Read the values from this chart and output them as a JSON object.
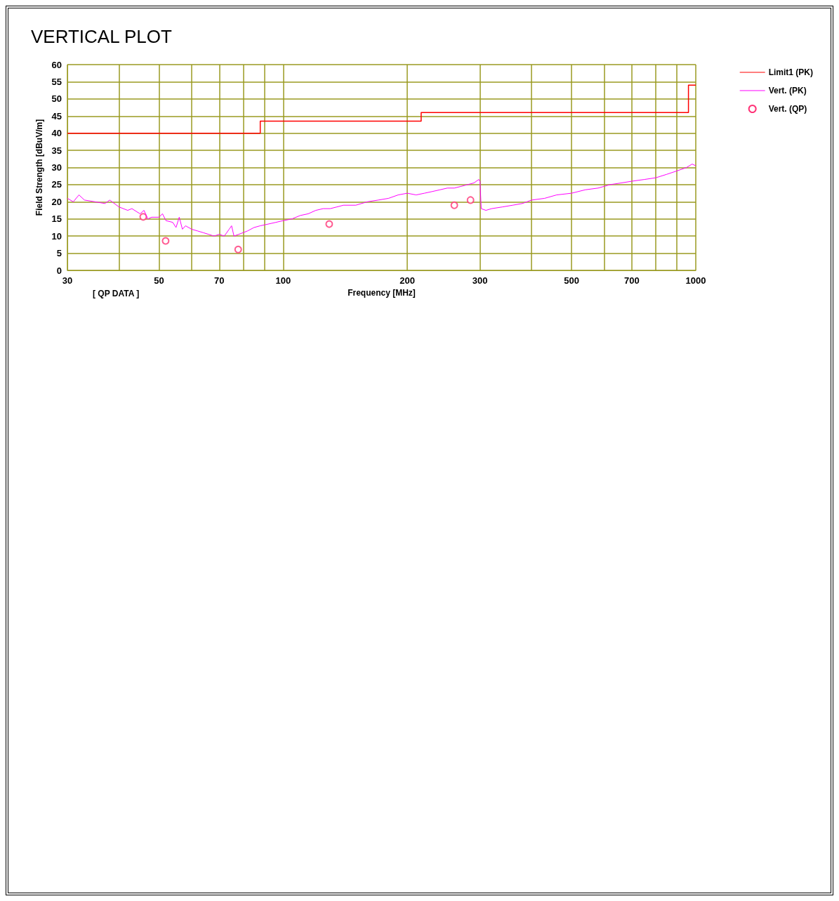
{
  "chart_data": {
    "type": "line",
    "title": "VERTICAL PLOT",
    "xlabel": "Frequency [MHz]",
    "ylabel": "Field Strength [dBuV/m]",
    "log": "x",
    "grid": true,
    "legend": "right",
    "annotations": [
      "[ QP DATA ]"
    ],
    "xlim": [
      30,
      1000
    ],
    "xticks": [
      30,
      {
        "value": 40,
        "label": null
      },
      50,
      {
        "value": 60,
        "label": null
      },
      70,
      {
        "value": 80,
        "label": null
      },
      {
        "value": 90,
        "label": null
      },
      100,
      200,
      300,
      {
        "value": 400,
        "label": null
      },
      500,
      {
        "value": 600,
        "label": null
      },
      700,
      {
        "value": 800,
        "label": null
      },
      {
        "value": 900,
        "label": null
      },
      1000
    ],
    "ylim": [
      0,
      60
    ],
    "yticks": [
      0,
      5,
      10,
      15,
      20,
      25,
      30,
      35,
      40,
      45,
      50,
      55,
      60
    ],
    "series": [
      {
        "name": "Limit1 (PK)",
        "type": "step",
        "color": "#ff0000",
        "x": [
          30,
          88,
          216,
          960,
          1000
        ],
        "values": [
          40,
          43.5,
          46,
          54,
          54
        ]
      },
      {
        "name": "Vert. (PK)",
        "type": "line",
        "color": "#ff00ff",
        "x": [
          30,
          31,
          32,
          33,
          35,
          37,
          38,
          40,
          42,
          43,
          45,
          46,
          47,
          48,
          50,
          51,
          52,
          54,
          55,
          56,
          57,
          58,
          60,
          62,
          64,
          66,
          68,
          70,
          72,
          74,
          75,
          76,
          78,
          80,
          82,
          85,
          88,
          92,
          96,
          100,
          105,
          110,
          115,
          120,
          125,
          130,
          135,
          140,
          150,
          160,
          170,
          180,
          190,
          200,
          210,
          220,
          230,
          240,
          250,
          260,
          270,
          280,
          290,
          298,
          300,
          302,
          310,
          320,
          340,
          360,
          380,
          400,
          430,
          460,
          500,
          540,
          580,
          620,
          660,
          700,
          750,
          800,
          850,
          900,
          950,
          980,
          1000
        ],
        "values": [
          21,
          20,
          22,
          20.5,
          20,
          19.5,
          20.5,
          18.5,
          17.5,
          18,
          16.5,
          17.5,
          15,
          15.5,
          15.5,
          16.5,
          14.5,
          14,
          12.5,
          15.5,
          12,
          13,
          12,
          11.5,
          11,
          10.5,
          10,
          10.5,
          10,
          12,
          13,
          10,
          10.5,
          11,
          11.5,
          12.5,
          13,
          13.5,
          14,
          14.5,
          15,
          16,
          16.5,
          17.5,
          18,
          18,
          18.5,
          19,
          19,
          20,
          20.5,
          21,
          22,
          22.5,
          22,
          22.5,
          23,
          23.5,
          24,
          24,
          24.5,
          25,
          25.5,
          26.5,
          26,
          18,
          17.5,
          18,
          18.5,
          19,
          19.5,
          20.5,
          21,
          22,
          22.5,
          23.5,
          24,
          25,
          25.5,
          26,
          26.5,
          27,
          28,
          29,
          30,
          31,
          30.5
        ]
      },
      {
        "name": "Vert. (QP)",
        "type": "scatter",
        "marker": "circle",
        "color": "#ff3377",
        "x": [
          45.8,
          51.9,
          77.8,
          129.3,
          259.9,
          284.5
        ],
        "values": [
          15.6,
          8.6,
          6.1,
          13.5,
          19,
          20.5
        ]
      }
    ]
  }
}
